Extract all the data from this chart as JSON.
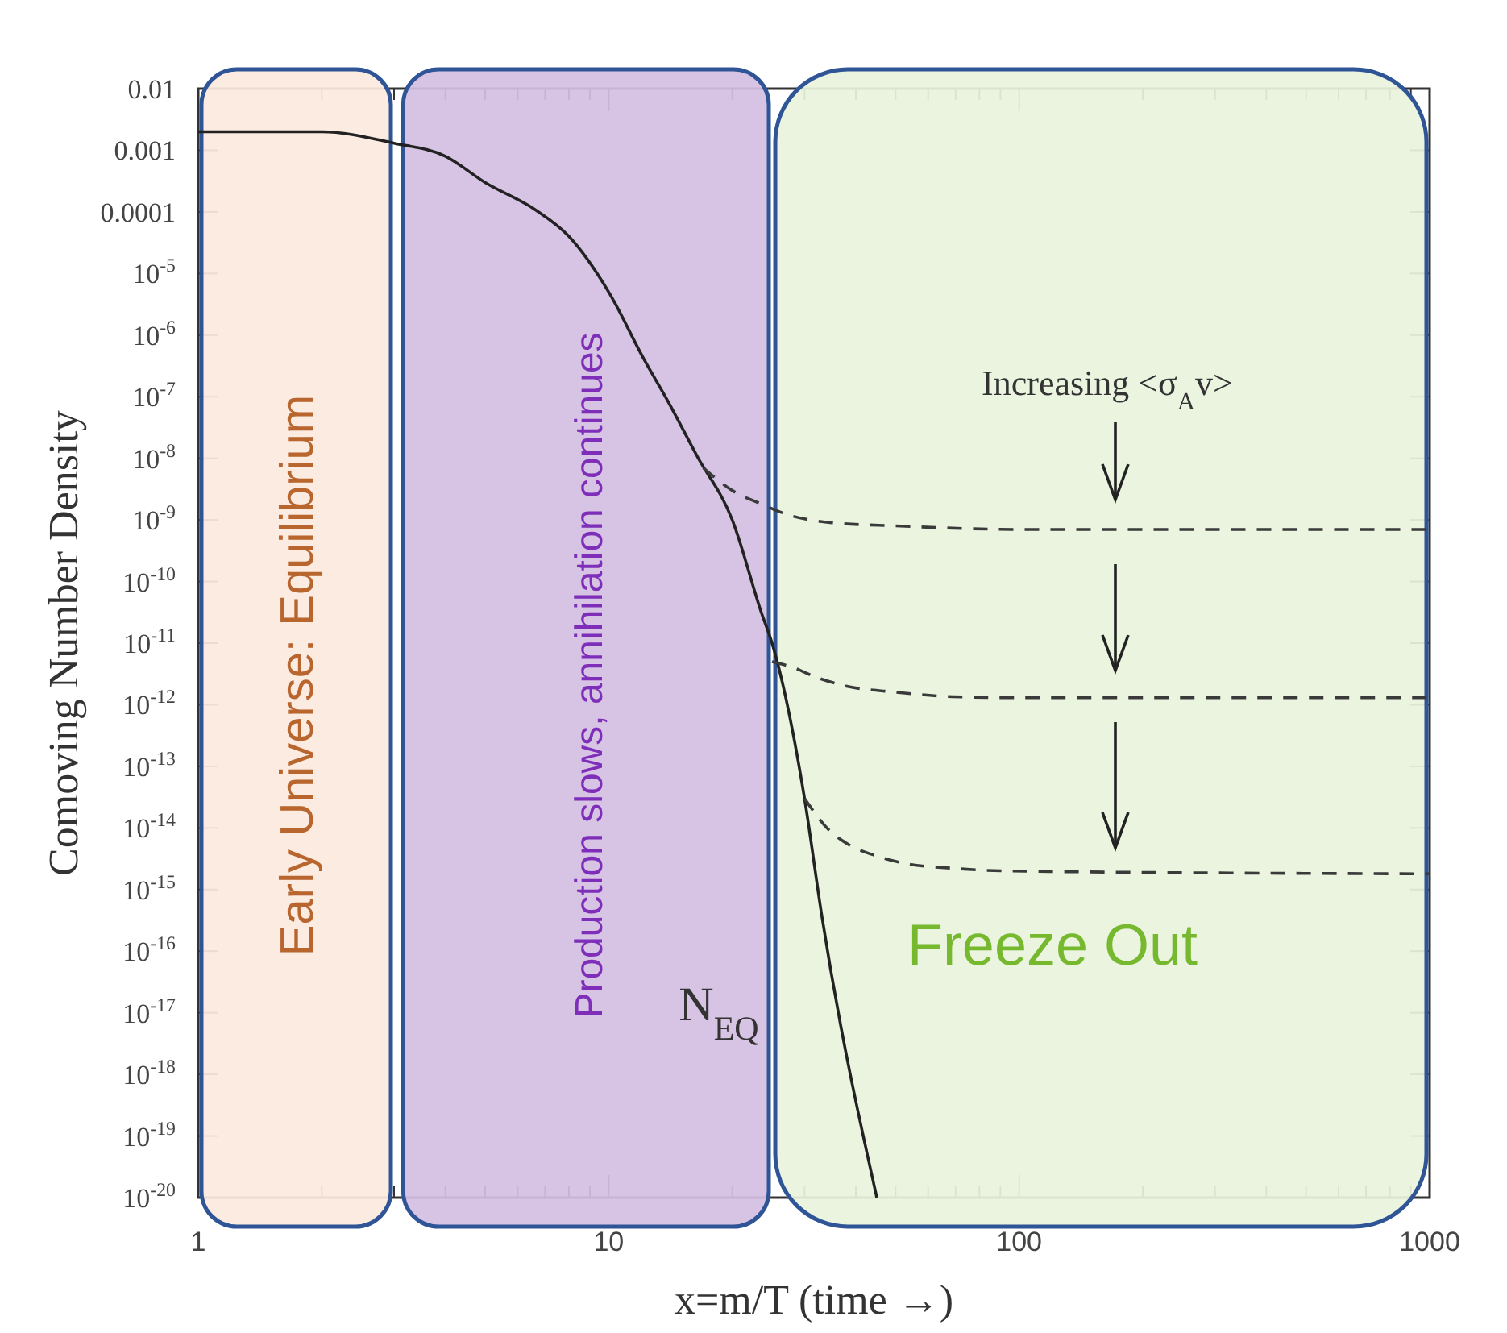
{
  "chart_data": {
    "type": "line",
    "xlabel": "x=m/T (time →)",
    "ylabel": "Comoving Number Density",
    "log": "xy",
    "xlim": [
      1,
      1000
    ],
    "ylim": [
      1e-20,
      0.01
    ],
    "xticks": [
      1,
      {
        "value": 2,
        "label": null
      },
      {
        "value": 3,
        "label": null
      },
      {
        "value": 4,
        "label": null
      },
      {
        "value": 5,
        "label": null
      },
      {
        "value": 6,
        "label": null
      },
      {
        "value": 7,
        "label": null
      },
      {
        "value": 8,
        "label": null
      },
      {
        "value": 9,
        "label": null
      },
      10,
      {
        "value": 20,
        "label": null
      },
      {
        "value": 30,
        "label": null
      },
      {
        "value": 40,
        "label": null
      },
      {
        "value": 50,
        "label": null
      },
      {
        "value": 60,
        "label": null
      },
      {
        "value": 70,
        "label": null
      },
      {
        "value": 80,
        "label": null
      },
      {
        "value": 90,
        "label": null
      },
      100,
      {
        "value": 200,
        "label": null
      },
      {
        "value": 300,
        "label": null
      },
      {
        "value": 400,
        "label": null
      },
      {
        "value": 500,
        "label": null
      },
      {
        "value": 600,
        "label": null
      },
      {
        "value": 700,
        "label": null
      },
      {
        "value": 800,
        "label": null
      },
      {
        "value": 900,
        "label": null
      },
      1000
    ],
    "yticks": [
      0.01,
      0.001,
      0.0001,
      {
        "value": 1e-05,
        "label": "10$^{-5}$"
      },
      {
        "value": 1e-06,
        "label": "10$^{-6}$"
      },
      {
        "value": 1e-07,
        "label": "10$^{-7}$"
      },
      {
        "value": 1e-08,
        "label": "10$^{-8}$"
      },
      {
        "value": 1e-09,
        "label": "10$^{-9}$"
      },
      {
        "value": 1e-10,
        "label": "10$^{-10}$"
      },
      {
        "value": 1e-11,
        "label": "10$^{-11}$"
      },
      {
        "value": 1e-12,
        "label": "10$^{-12}$"
      },
      {
        "value": 1e-13,
        "label": "10$^{-13}$"
      },
      {
        "value": 1e-14,
        "label": "10$^{-14}$"
      },
      {
        "value": 1e-15,
        "label": "10$^{-15}$"
      },
      {
        "value": 1e-16,
        "label": "10$^{-16}$"
      },
      {
        "value": 1e-17,
        "label": "10$^{-17}$"
      },
      {
        "value": 1e-18,
        "label": "10$^{-18}$"
      },
      {
        "value": 1e-19,
        "label": "10$^{-19}$"
      },
      {
        "value": 1e-20,
        "label": "10$^{-20}$"
      }
    ],
    "grid": false,
    "series": [
      {
        "color": "#222222",
        "line_style": "solid",
        "x": [
          1,
          2,
          3,
          4,
          5,
          6.6,
          8,
          10,
          12.2,
          14,
          16.4,
          20,
          23.6,
          25,
          30,
          33,
          45
        ],
        "values": [
          0.002,
          0.002,
          0.0013,
          0.0008,
          0.0003,
          0.00011,
          4e-05,
          5e-06,
          4e-07,
          8e-08,
          1.1e-08,
          1e-09,
          3e-11,
          1e-11,
          3e-14,
          4e-16,
          1e-20
        ]
      },
      {
        "color": "#3a3a3a",
        "line_style": "dashed",
        "x": [
          17,
          20,
          23.6,
          27.5,
          35,
          50,
          100,
          1000
        ],
        "values": [
          7e-09,
          3e-09,
          1.8e-09,
          1.2e-09,
          9e-10,
          8e-10,
          7e-10,
          7e-10
        ]
      },
      {
        "color": "#3a3a3a",
        "line_style": "dashed",
        "x": [
          25,
          28.2,
          32,
          38,
          50,
          69,
          100,
          1000
        ],
        "values": [
          5e-12,
          4e-12,
          2.8e-12,
          2e-12,
          1.6e-12,
          1.35e-12,
          1.3e-12,
          1.3e-12
        ]
      },
      {
        "color": "#3a3a3a",
        "line_style": "dashed",
        "x": [
          30,
          31,
          34,
          38,
          45,
          52,
          70,
          95,
          1000
        ],
        "values": [
          3e-14,
          2.2e-14,
          1e-14,
          5.6e-15,
          3.5e-15,
          2.7e-15,
          2.2e-15,
          2e-15,
          1.8e-15
        ]
      }
    ],
    "bands": [
      {
        "axis": "x",
        "from": 1,
        "to": 3,
        "label": "Early Universe: Equilibrium",
        "color": "#fbe9dd"
      },
      {
        "axis": "x",
        "from": 3.1,
        "to": 25,
        "label": "Production slows, annihilation continues",
        "color": "#d4bfe3"
      },
      {
        "axis": "x",
        "from": 25,
        "to": 1000,
        "label": "Freeze Out",
        "color": "#e8f3dc"
      }
    ],
    "annotations": [
      "Increasing <σ$_{A}$v>",
      "N$_{EQ}$"
    ]
  }
}
